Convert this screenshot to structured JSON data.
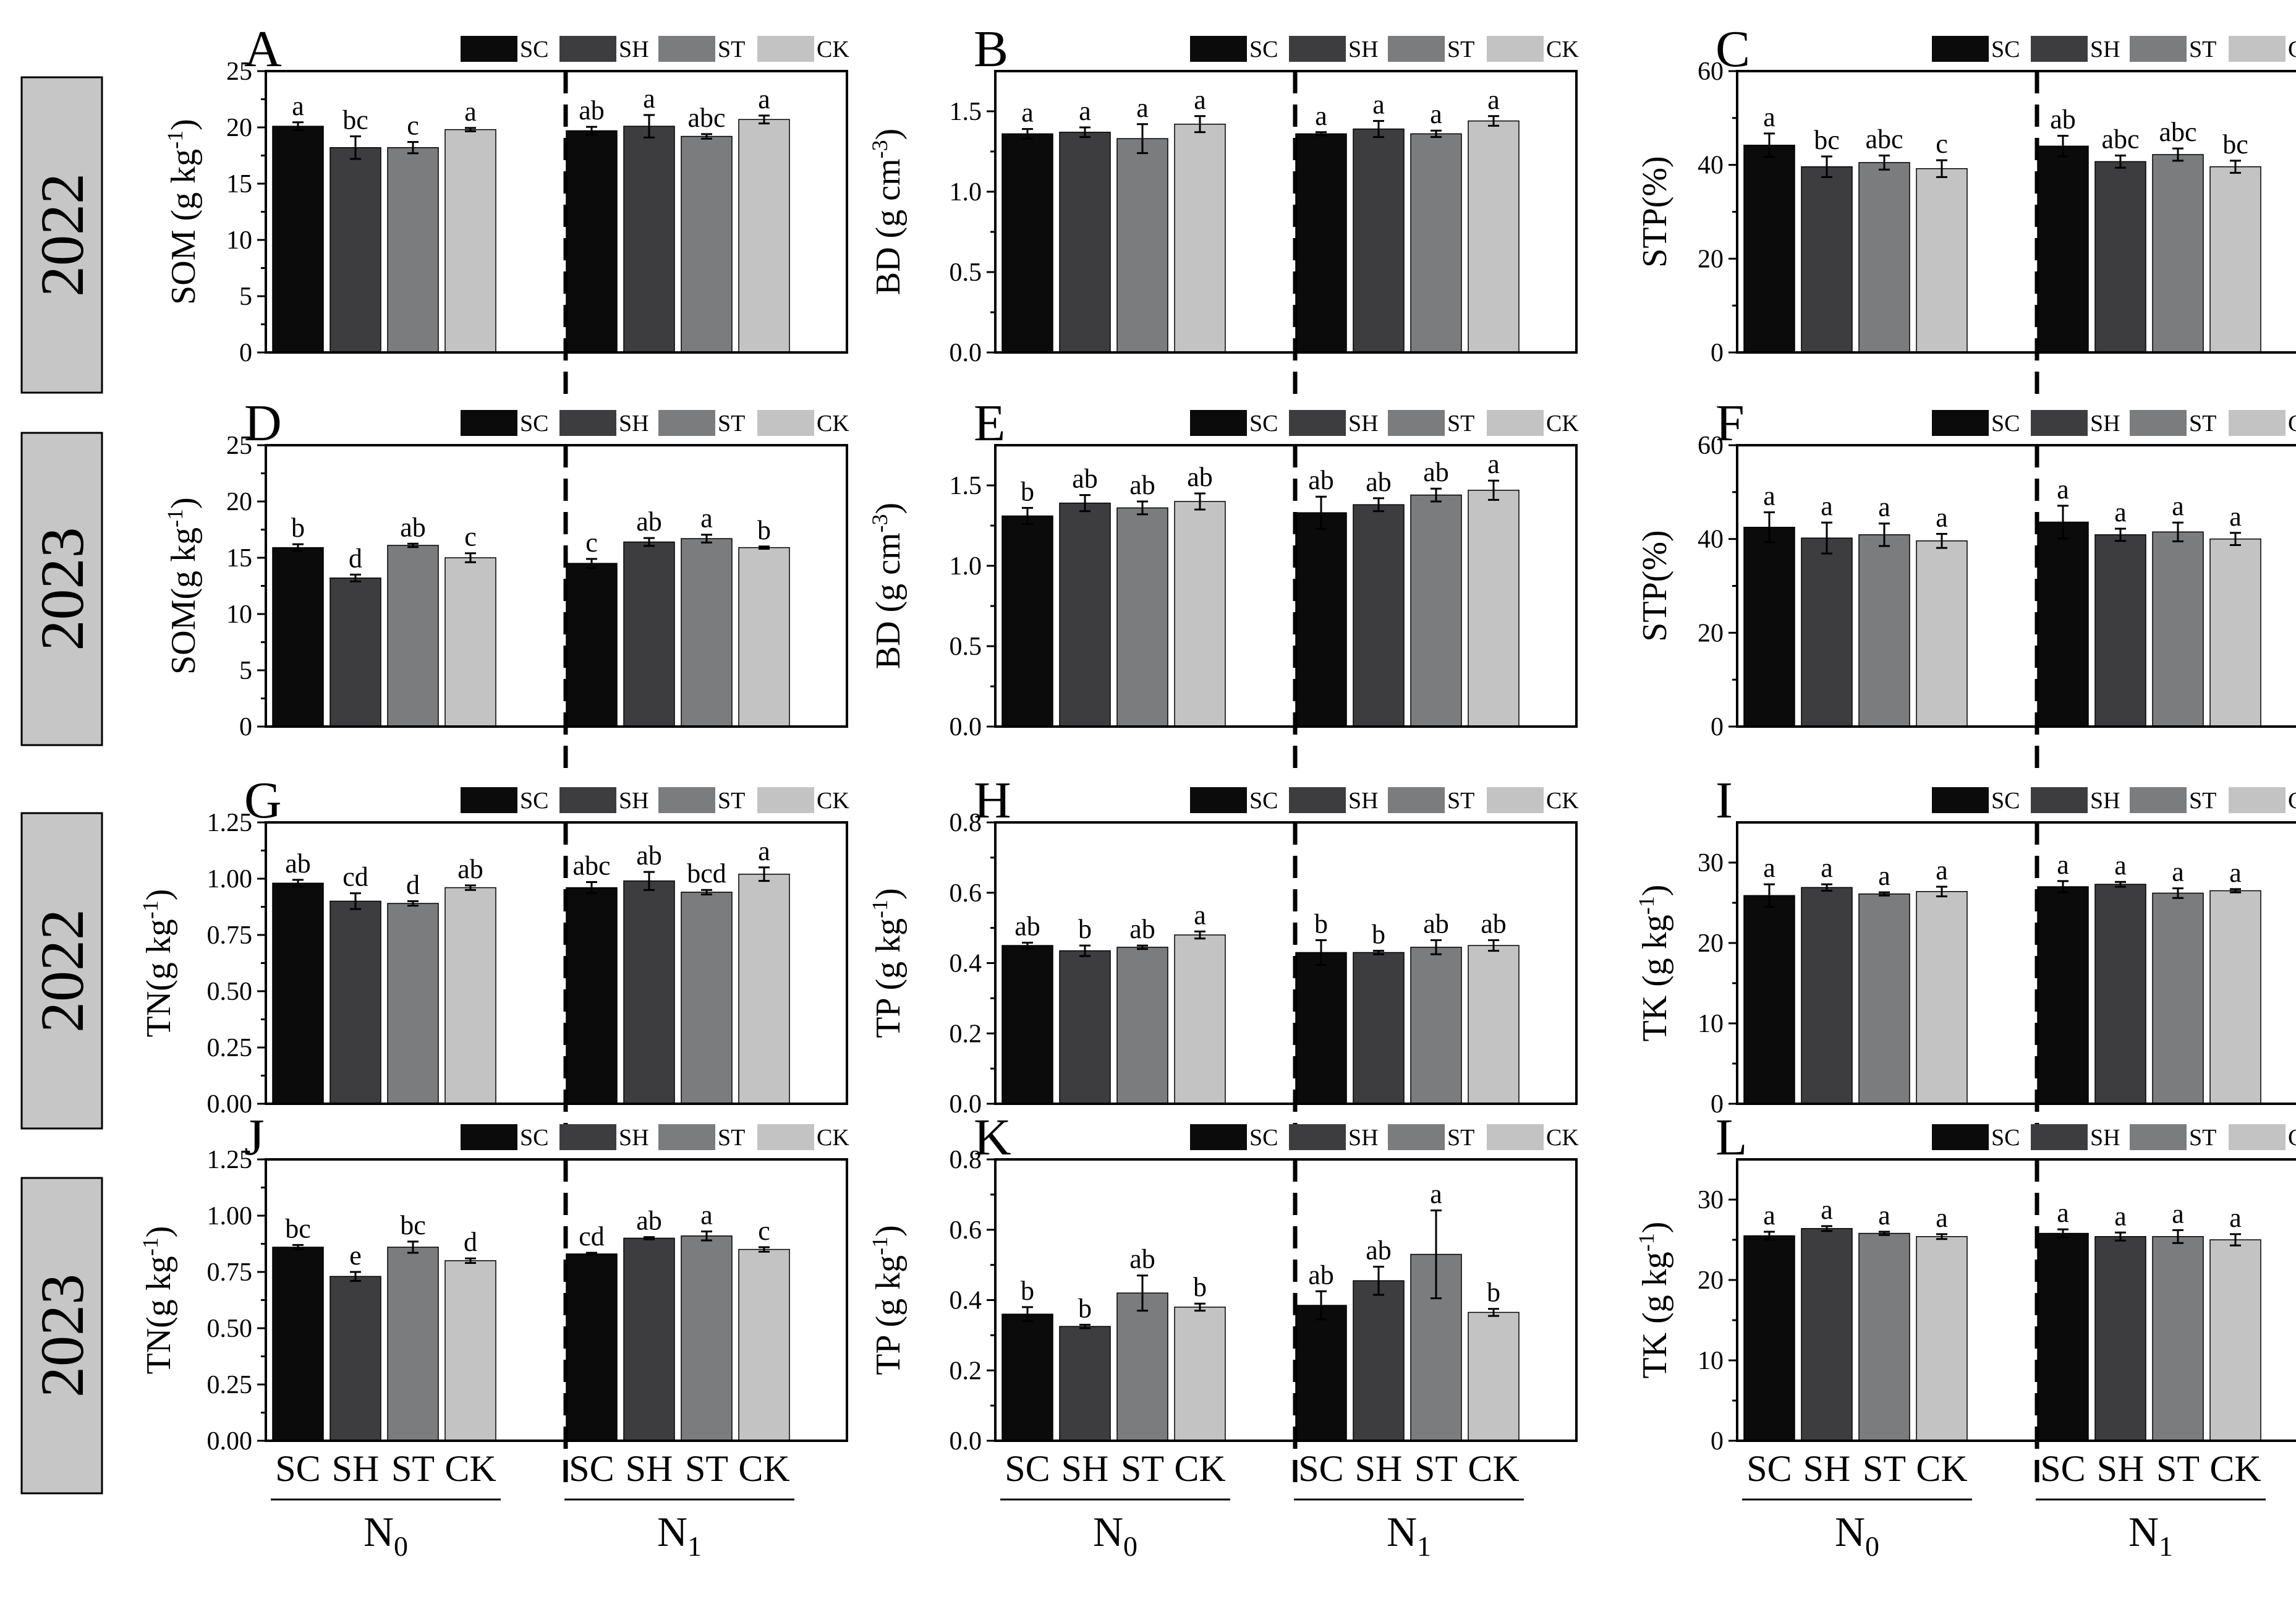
{
  "figure": {
    "treatments": [
      "SC",
      "SH",
      "ST",
      "CK"
    ],
    "nitrogen_groups": [
      "N0",
      "N1"
    ],
    "group_label_base": "N",
    "group_label_subs": [
      "0",
      "1"
    ],
    "colors": {
      "SC": "#0b0b0b",
      "SH": "#3d3d3f",
      "ST": "#7b7c7e",
      "CK": "#c3c3c3"
    },
    "row_years": [
      "2022",
      "2023",
      "2022",
      "2023"
    ]
  },
  "chart_data": [
    {
      "panel": "A",
      "type": "bar",
      "year": "2022",
      "ylabel": "SOM (g kg-1)",
      "ylabel_parts": [
        "SOM (g kg",
        "-1",
        ")"
      ],
      "ylim": [
        0,
        25
      ],
      "ticks": [
        "0",
        "5",
        "10",
        "15",
        "20",
        "25"
      ],
      "legend": [
        "SC",
        "SH",
        "ST",
        "CK"
      ],
      "groups": [
        {
          "name": "N0",
          "values": [
            20.1,
            18.2,
            18.2,
            19.8
          ],
          "errors": [
            0.35,
            1.0,
            0.5,
            0.15
          ],
          "letters": [
            "a",
            "bc",
            "c",
            "a"
          ]
        },
        {
          "name": "N1",
          "values": [
            19.7,
            20.1,
            19.2,
            20.7
          ],
          "errors": [
            0.35,
            1.0,
            0.2,
            0.35
          ],
          "letters": [
            "ab",
            "a",
            "abc",
            "a"
          ]
        }
      ]
    },
    {
      "panel": "B",
      "type": "bar",
      "year": "2022",
      "ylabel": "BD (g cm-3)",
      "ylabel_parts": [
        "BD (g cm",
        "-3",
        ")"
      ],
      "ylim": [
        0,
        1.75
      ],
      "ticks": [
        "0.0",
        "0.5",
        "1.0",
        "1.5"
      ],
      "legend": [
        "SC",
        "SH",
        "ST",
        "CK"
      ],
      "groups": [
        {
          "name": "N0",
          "values": [
            1.36,
            1.37,
            1.33,
            1.42
          ],
          "errors": [
            0.03,
            0.03,
            0.09,
            0.05
          ],
          "letters": [
            "a",
            "a",
            "a",
            "a"
          ]
        },
        {
          "name": "N1",
          "values": [
            1.36,
            1.39,
            1.36,
            1.44
          ],
          "errors": [
            0.01,
            0.05,
            0.02,
            0.03
          ],
          "letters": [
            "a",
            "a",
            "a",
            "a"
          ]
        }
      ]
    },
    {
      "panel": "C",
      "type": "bar",
      "year": "2022",
      "ylabel": "STP(%)",
      "ylabel_parts": [
        "STP(%)"
      ],
      "ylim": [
        0,
        60
      ],
      "ticks": [
        "0",
        "20",
        "40",
        "60"
      ],
      "legend": [
        "SC",
        "SH",
        "ST",
        "CK"
      ],
      "groups": [
        {
          "name": "N0",
          "values": [
            44.2,
            39.6,
            40.5,
            39.2
          ],
          "errors": [
            2.5,
            2.2,
            1.5,
            1.8
          ],
          "letters": [
            "a",
            "bc",
            "abc",
            "c"
          ]
        },
        {
          "name": "N1",
          "values": [
            44.0,
            40.7,
            42.2,
            39.6
          ],
          "errors": [
            2.2,
            1.3,
            1.3,
            1.3
          ],
          "letters": [
            "ab",
            "abc",
            "abc",
            "bc"
          ]
        }
      ]
    },
    {
      "panel": "D",
      "type": "bar",
      "year": "2023",
      "ylabel": "SOM(g kg-1)",
      "ylabel_parts": [
        "SOM(g kg",
        "-1",
        ")"
      ],
      "ylim": [
        0,
        25
      ],
      "ticks": [
        "0",
        "5",
        "10",
        "15",
        "20",
        "25"
      ],
      "legend": [
        "SC",
        "SH",
        "ST",
        "CK"
      ],
      "groups": [
        {
          "name": "N0",
          "values": [
            15.9,
            13.2,
            16.1,
            15.0
          ],
          "errors": [
            0.3,
            0.3,
            0.15,
            0.4
          ],
          "letters": [
            "b",
            "d",
            "ab",
            "c"
          ]
        },
        {
          "name": "N1",
          "values": [
            14.5,
            16.4,
            16.7,
            15.9
          ],
          "errors": [
            0.4,
            0.35,
            0.35,
            0.1
          ],
          "letters": [
            "c",
            "ab",
            "a",
            "b"
          ]
        }
      ]
    },
    {
      "panel": "E",
      "type": "bar",
      "year": "2023",
      "ylabel": "BD (g cm-3)",
      "ylabel_parts": [
        "BD (g cm",
        "-3",
        ")"
      ],
      "ylim": [
        0,
        1.75
      ],
      "ticks": [
        "0.0",
        "0.5",
        "1.0",
        "1.5"
      ],
      "legend": [
        "SC",
        "SH",
        "ST",
        "CK"
      ],
      "groups": [
        {
          "name": "N0",
          "values": [
            1.31,
            1.39,
            1.36,
            1.4
          ],
          "errors": [
            0.05,
            0.05,
            0.04,
            0.05
          ],
          "letters": [
            "b",
            "ab",
            "ab",
            "ab"
          ]
        },
        {
          "name": "N1",
          "values": [
            1.33,
            1.38,
            1.44,
            1.47
          ],
          "errors": [
            0.1,
            0.04,
            0.04,
            0.06
          ],
          "letters": [
            "ab",
            "ab",
            "ab",
            "a"
          ]
        }
      ]
    },
    {
      "panel": "F",
      "type": "bar",
      "year": "2023",
      "ylabel": "STP(%)",
      "ylabel_parts": [
        "STP(%)"
      ],
      "ylim": [
        0,
        60
      ],
      "ticks": [
        "0",
        "20",
        "40",
        "60"
      ],
      "legend": [
        "SC",
        "SH",
        "ST",
        "CK"
      ],
      "groups": [
        {
          "name": "N0",
          "values": [
            42.5,
            40.2,
            40.9,
            39.6
          ],
          "errors": [
            3.2,
            3.3,
            2.4,
            1.5
          ],
          "letters": [
            "a",
            "a",
            "a",
            "a"
          ]
        },
        {
          "name": "N1",
          "values": [
            43.6,
            40.9,
            41.5,
            40.0
          ],
          "errors": [
            3.5,
            1.3,
            2.0,
            1.3
          ],
          "letters": [
            "a",
            "a",
            "a",
            "a"
          ]
        }
      ]
    },
    {
      "panel": "G",
      "type": "bar",
      "year": "2022",
      "ylabel": "TN(g kg-1)",
      "ylabel_parts": [
        "TN(g kg",
        "-1",
        ")"
      ],
      "ylim": [
        0,
        1.25
      ],
      "ticks": [
        "0.00",
        "0.25",
        "0.50",
        "0.75",
        "1.00",
        "1.25"
      ],
      "legend": [
        "SC",
        "SH",
        "ST",
        "CK"
      ],
      "groups": [
        {
          "name": "N0",
          "values": [
            0.98,
            0.9,
            0.89,
            0.96
          ],
          "errors": [
            0.015,
            0.035,
            0.01,
            0.01
          ],
          "letters": [
            "ab",
            "cd",
            "d",
            "ab"
          ]
        },
        {
          "name": "N1",
          "values": [
            0.96,
            0.99,
            0.94,
            1.02
          ],
          "errors": [
            0.025,
            0.04,
            0.01,
            0.03
          ],
          "letters": [
            "abc",
            "ab",
            "bcd",
            "a"
          ]
        }
      ]
    },
    {
      "panel": "H",
      "type": "bar",
      "year": "2022",
      "ylabel": "TP (g kg-1)",
      "ylabel_parts": [
        "TP (g kg",
        "-1",
        ")"
      ],
      "ylim": [
        0,
        0.8
      ],
      "ticks": [
        "0.0",
        "0.2",
        "0.4",
        "0.6",
        "0.8"
      ],
      "legend": [
        "SC",
        "SH",
        "ST",
        "CK"
      ],
      "groups": [
        {
          "name": "N0",
          "values": [
            0.45,
            0.435,
            0.445,
            0.48
          ],
          "errors": [
            0.008,
            0.015,
            0.005,
            0.01
          ],
          "letters": [
            "ab",
            "b",
            "ab",
            "a"
          ]
        },
        {
          "name": "N1",
          "values": [
            0.43,
            0.43,
            0.445,
            0.45
          ],
          "errors": [
            0.035,
            0.005,
            0.02,
            0.015
          ],
          "letters": [
            "b",
            "b",
            "ab",
            "ab"
          ]
        }
      ]
    },
    {
      "panel": "I",
      "type": "bar",
      "year": "2022",
      "ylabel": "TK (g kg-1)",
      "ylabel_parts": [
        "TK (g kg",
        "-1",
        ")"
      ],
      "ylim": [
        0,
        35
      ],
      "ticks": [
        "0",
        "10",
        "20",
        "30"
      ],
      "legend": [
        "SC",
        "SH",
        "ST",
        "CK"
      ],
      "groups": [
        {
          "name": "N0",
          "values": [
            25.9,
            26.9,
            26.1,
            26.4
          ],
          "errors": [
            1.4,
            0.4,
            0.2,
            0.6
          ],
          "letters": [
            "a",
            "a",
            "a",
            "a"
          ]
        },
        {
          "name": "N1",
          "values": [
            27.0,
            27.3,
            26.2,
            26.5
          ],
          "errors": [
            0.7,
            0.3,
            0.6,
            0.2
          ],
          "letters": [
            "a",
            "a",
            "a",
            "a"
          ]
        }
      ]
    },
    {
      "panel": "J",
      "type": "bar",
      "year": "2023",
      "ylabel": "TN(g kg-1)",
      "ylabel_parts": [
        "TN(g kg",
        "-1",
        ")"
      ],
      "ylim": [
        0,
        1.25
      ],
      "ticks": [
        "0.00",
        "0.25",
        "0.50",
        "0.75",
        "1.00",
        "1.25"
      ],
      "legend": [
        "SC",
        "SH",
        "ST",
        "CK"
      ],
      "groups": [
        {
          "name": "N0",
          "values": [
            0.86,
            0.73,
            0.86,
            0.8
          ],
          "errors": [
            0.01,
            0.02,
            0.025,
            0.01
          ],
          "letters": [
            "bc",
            "e",
            "bc",
            "d"
          ]
        },
        {
          "name": "N1",
          "values": [
            0.83,
            0.9,
            0.91,
            0.85
          ],
          "errors": [
            0.005,
            0.005,
            0.02,
            0.01
          ],
          "letters": [
            "cd",
            "ab",
            "a",
            "c"
          ]
        }
      ]
    },
    {
      "panel": "K",
      "type": "bar",
      "year": "2023",
      "ylabel": "TP (g kg-1)",
      "ylabel_parts": [
        "TP (g kg",
        "-1",
        ")"
      ],
      "ylim": [
        0,
        0.8
      ],
      "ticks": [
        "0.0",
        "0.2",
        "0.4",
        "0.6",
        "0.8"
      ],
      "legend": [
        "SC",
        "SH",
        "ST",
        "CK"
      ],
      "groups": [
        {
          "name": "N0",
          "values": [
            0.36,
            0.325,
            0.42,
            0.38
          ],
          "errors": [
            0.02,
            0.005,
            0.05,
            0.01
          ],
          "letters": [
            "b",
            "b",
            "ab",
            "b"
          ]
        },
        {
          "name": "N1",
          "values": [
            0.385,
            0.455,
            0.53,
            0.365
          ],
          "errors": [
            0.04,
            0.04,
            0.125,
            0.01
          ],
          "letters": [
            "ab",
            "ab",
            "a",
            "b"
          ]
        }
      ]
    },
    {
      "panel": "L",
      "type": "bar",
      "year": "2023",
      "ylabel": "TK (g kg-1)",
      "ylabel_parts": [
        "TK (g kg",
        "-1",
        ")"
      ],
      "ylim": [
        0,
        35
      ],
      "ticks": [
        "0",
        "10",
        "20",
        "30"
      ],
      "legend": [
        "SC",
        "SH",
        "ST",
        "CK"
      ],
      "groups": [
        {
          "name": "N0",
          "values": [
            25.5,
            26.4,
            25.8,
            25.4
          ],
          "errors": [
            0.5,
            0.3,
            0.2,
            0.3
          ],
          "letters": [
            "a",
            "a",
            "a",
            "a"
          ]
        },
        {
          "name": "N1",
          "values": [
            25.8,
            25.4,
            25.4,
            25.0
          ],
          "errors": [
            0.5,
            0.5,
            0.8,
            0.7
          ],
          "letters": [
            "a",
            "a",
            "a",
            "a"
          ]
        }
      ]
    }
  ]
}
